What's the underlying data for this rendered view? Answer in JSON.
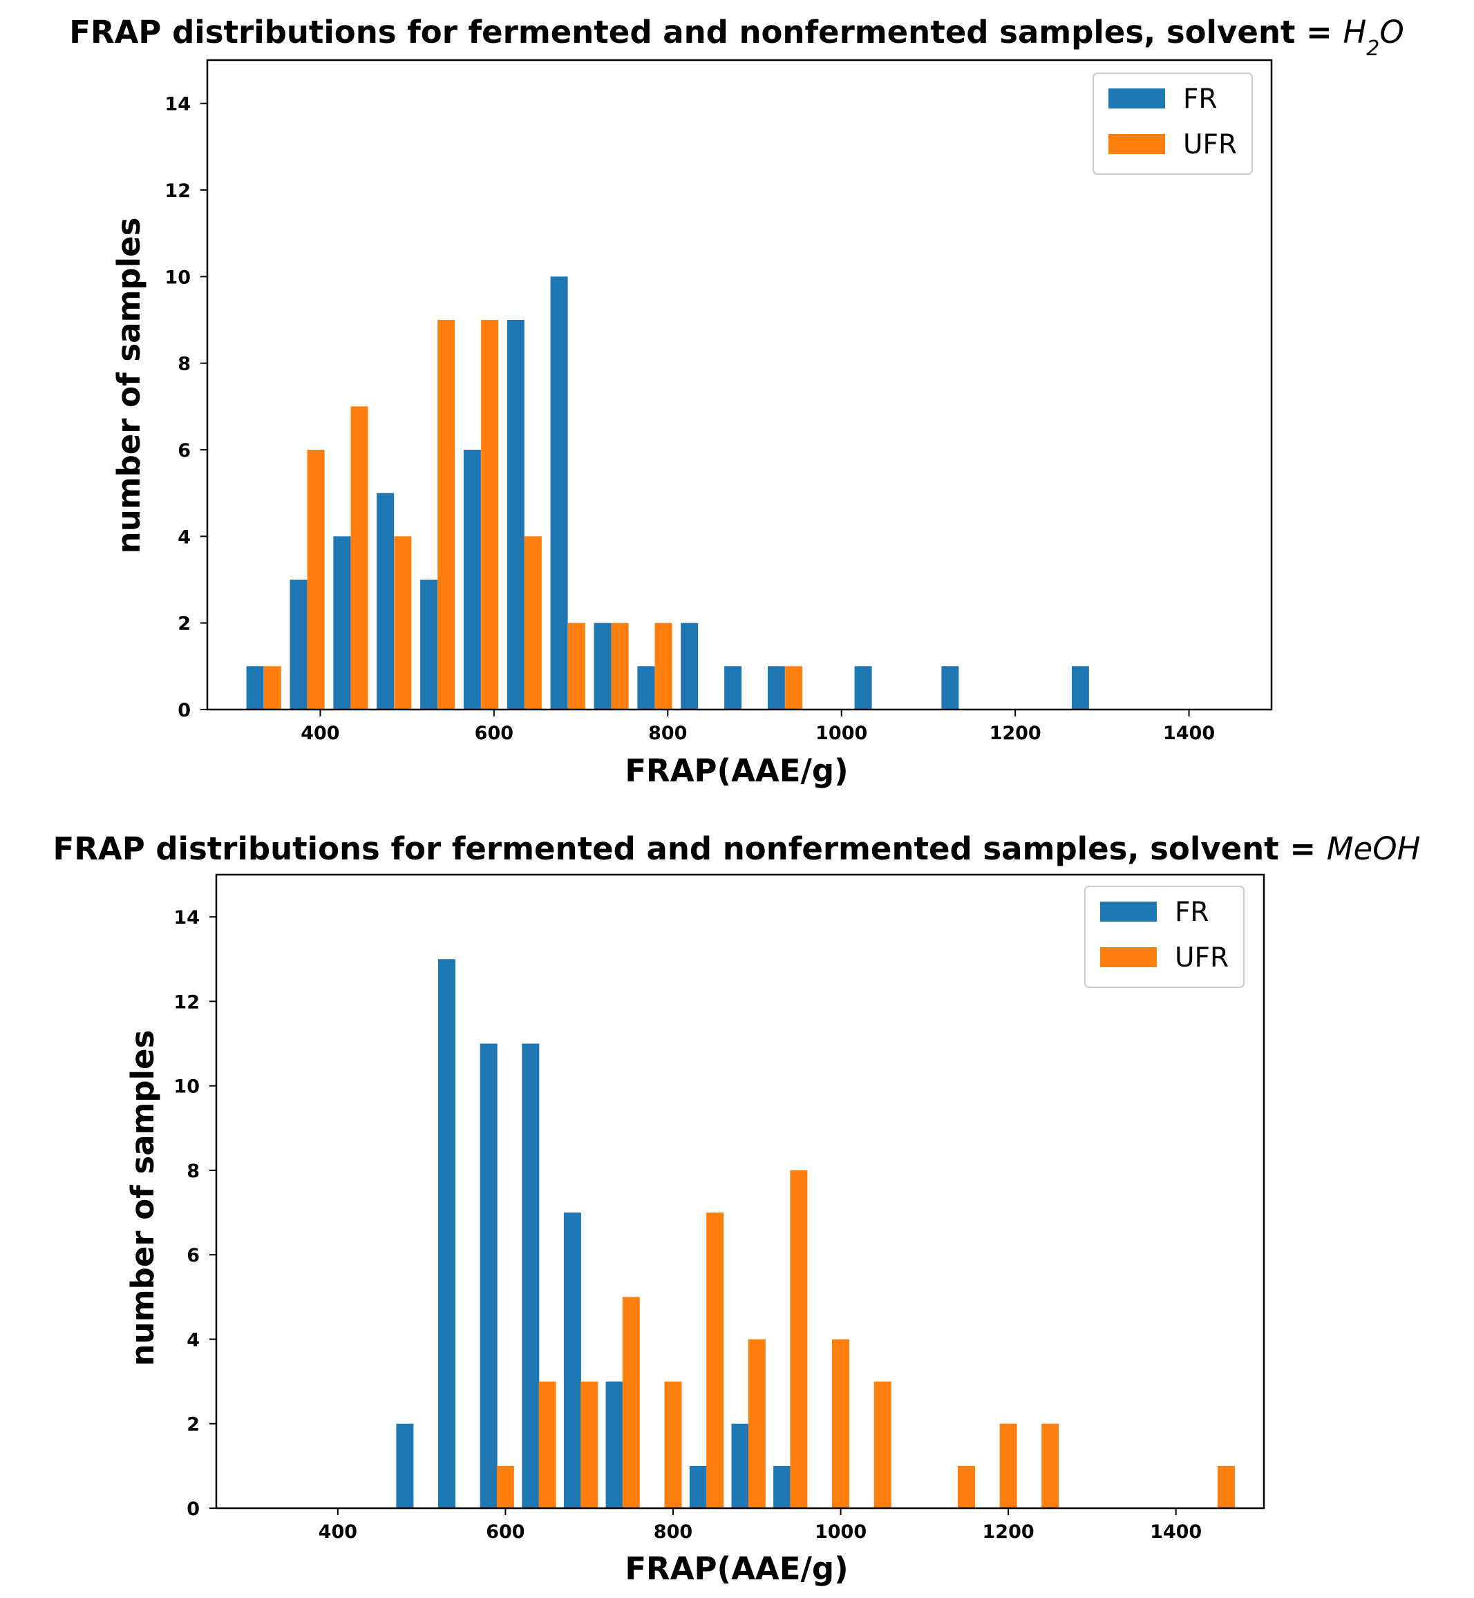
{
  "chart_data": [
    {
      "type": "bar",
      "title": "FRAP distributions for fermented and nonfermented samples, solvent = ",
      "title_math": {
        "base": "H",
        "sub": "2",
        "tail": "O"
      },
      "xlabel": "FRAP(AAE/g)",
      "ylabel": "number of samples",
      "xlim": [
        270,
        1495
      ],
      "ylim": [
        0,
        15
      ],
      "xticks": [
        400,
        600,
        800,
        1000,
        1200,
        1400
      ],
      "yticks": [
        0,
        2,
        4,
        6,
        8,
        10,
        12,
        14
      ],
      "grid": false,
      "legend_position": "top-right",
      "series": [
        {
          "name": "FR",
          "color": "#1f77b4",
          "x": [
            325,
            375,
            425,
            475,
            525,
            575,
            625,
            675,
            725,
            775,
            825,
            875,
            925,
            1025,
            1125,
            1275
          ],
          "values": [
            1,
            3,
            4,
            5,
            3,
            6,
            9,
            10,
            2,
            1,
            2,
            1,
            1,
            1,
            1,
            1
          ]
        },
        {
          "name": "UFR",
          "color": "#ff7f0e",
          "x": [
            345,
            395,
            445,
            495,
            545,
            595,
            645,
            695,
            745,
            795,
            945
          ],
          "values": [
            1,
            6,
            7,
            4,
            9,
            9,
            4,
            2,
            2,
            2,
            1
          ]
        }
      ]
    },
    {
      "type": "bar",
      "title": "FRAP distributions for fermented and nonfermented samples, solvent = ",
      "title_math": {
        "base": "MeOH",
        "sub": "",
        "tail": ""
      },
      "xlabel": "FRAP(AAE/g)",
      "ylabel": "number of samples",
      "xlim": [
        255,
        1505
      ],
      "ylim": [
        0,
        15
      ],
      "xticks": [
        400,
        600,
        800,
        1000,
        1200,
        1400
      ],
      "yticks": [
        0,
        2,
        4,
        6,
        8,
        10,
        12,
        14
      ],
      "grid": false,
      "legend_position": "top-right",
      "series": [
        {
          "name": "FR",
          "color": "#1f77b4",
          "x": [
            480,
            530,
            580,
            630,
            680,
            730,
            830,
            880,
            930
          ],
          "values": [
            2,
            13,
            11,
            11,
            7,
            3,
            1,
            2,
            1
          ]
        },
        {
          "name": "UFR",
          "color": "#ff7f0e",
          "x": [
            600,
            650,
            700,
            750,
            800,
            850,
            900,
            950,
            1000,
            1050,
            1150,
            1200,
            1250,
            1460
          ],
          "values": [
            1,
            3,
            3,
            5,
            3,
            7,
            4,
            8,
            4,
            3,
            1,
            2,
            2,
            1
          ]
        }
      ]
    }
  ]
}
